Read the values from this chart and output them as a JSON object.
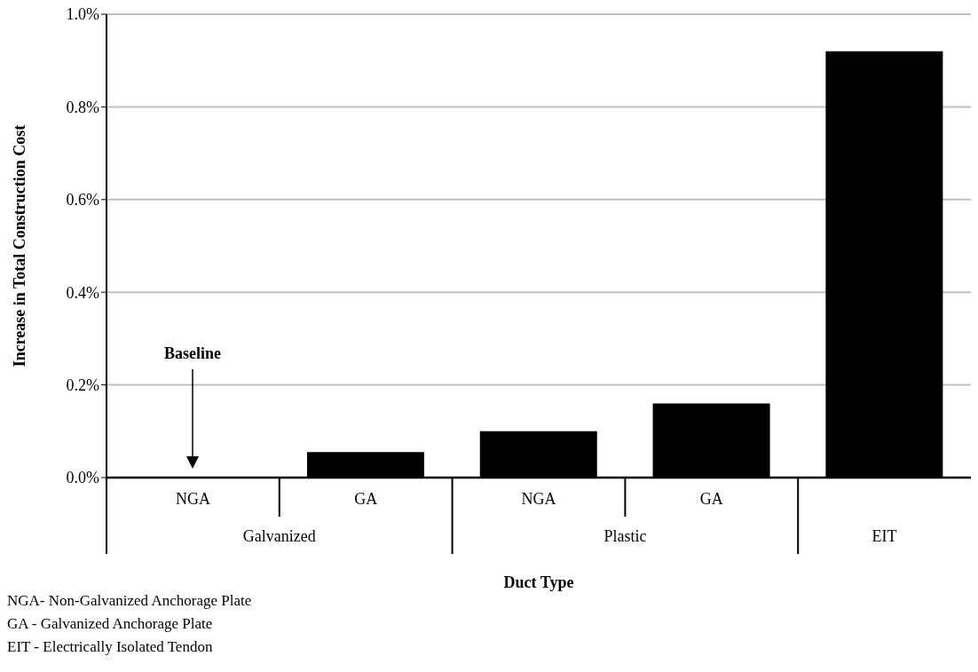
{
  "chart_data": {
    "type": "bar",
    "xlabel": "Duct Type",
    "ylabel": "Increase in Total Construction Cost",
    "categories": [
      "NGA",
      "GA",
      "NGA",
      "GA",
      null
    ],
    "values": [
      0,
      0.055,
      0.1,
      0.16,
      0.92
    ],
    "color": "#000000",
    "ylim": [
      0,
      1.0
    ],
    "yticks": [
      {
        "value": 0,
        "label": "0.0%"
      },
      {
        "value": 0.2,
        "label": "0.2%"
      },
      {
        "value": 0.4,
        "label": "0.4%"
      },
      {
        "value": 0.6,
        "label": "0.6%"
      },
      {
        "value": 0.8,
        "label": "0.8%"
      },
      {
        "value": 1.0,
        "label": "1.0%"
      }
    ],
    "grid": "y",
    "annotations": [
      "Galvanized",
      "Plastic",
      "EIT",
      "Baseline",
      "NGA- Non-Galvanized Anchorage Plate",
      "GA - Galvanized Anchorage Plate",
      "EIT - Electrically Isolated Tendon"
    ]
  }
}
